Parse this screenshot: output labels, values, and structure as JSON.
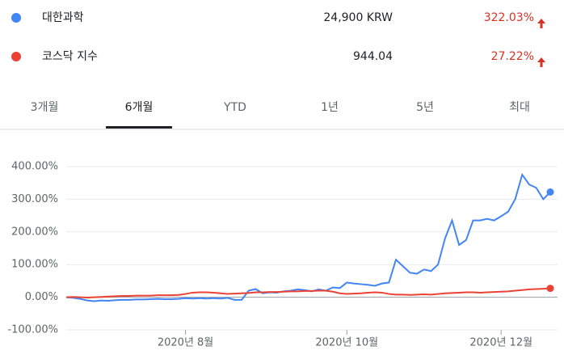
{
  "quotes": [
    {
      "name": "대한과학",
      "price": "24,900 KRW",
      "change": "322.03%",
      "color": "#4285f4"
    },
    {
      "name": "코스닥 지수",
      "price": "944.04",
      "change": "27.22%",
      "color": "#ea4335"
    }
  ],
  "tabs": [
    "3개월",
    "6개월",
    "YTD",
    "1년",
    "5년",
    "최대"
  ],
  "selected_tab": 1,
  "chart_data": {
    "type": "line",
    "categories": [
      null,
      null,
      null,
      null,
      null,
      null,
      null,
      null,
      null,
      null,
      null,
      null,
      null,
      null,
      null,
      null,
      null,
      "2020년 8월",
      null,
      null,
      null,
      null,
      null,
      null,
      null,
      null,
      null,
      null,
      null,
      null,
      null,
      null,
      null,
      null,
      null,
      null,
      null,
      null,
      null,
      null,
      "2020년 10월",
      null,
      null,
      null,
      null,
      null,
      null,
      null,
      null,
      null,
      null,
      null,
      null,
      null,
      null,
      null,
      null,
      null,
      null,
      null,
      null,
      null,
      "2020년 12월",
      null,
      null,
      null,
      null,
      null,
      null,
      null
    ],
    "series": [
      {
        "name": "대한과학",
        "color": "#4285f4",
        "values": [
          0,
          -2,
          -5,
          -10,
          -12,
          -10,
          -11,
          -9,
          -8,
          -8,
          -7,
          -7,
          -6,
          -5,
          -6,
          -6,
          -5,
          -3,
          -4,
          -3,
          -4,
          -3,
          -4,
          -2,
          -8,
          -8,
          20,
          25,
          12,
          15,
          14,
          18,
          20,
          24,
          22,
          18,
          24,
          20,
          30,
          28,
          45,
          42,
          40,
          38,
          35,
          42,
          45,
          115,
          95,
          75,
          72,
          85,
          80,
          100,
          180,
          235,
          160,
          175,
          235,
          235,
          240,
          235,
          248,
          262,
          300,
          375,
          345,
          335,
          300,
          322.03
        ]
      },
      {
        "name": "코스닥 지수",
        "color": "#ea4335",
        "values": [
          0,
          1,
          0,
          -1,
          0,
          1,
          2,
          3,
          4,
          4,
          5,
          5,
          5,
          6,
          6,
          6,
          7,
          10,
          14,
          15,
          15,
          14,
          12,
          10,
          11,
          12,
          13,
          15,
          15,
          16,
          16,
          17,
          18,
          18,
          19,
          19,
          20,
          20,
          17,
          12,
          10,
          11,
          12,
          14,
          15,
          14,
          10,
          8,
          8,
          7,
          8,
          9,
          8,
          10,
          12,
          13,
          14,
          15,
          15,
          14,
          15,
          16,
          17,
          18,
          20,
          22,
          24,
          25,
          26,
          27.22
        ]
      }
    ],
    "ylim": [
      -100,
      400
    ],
    "yticks": [
      {
        "value": -100,
        "label": "-100.00%"
      },
      {
        "value": 0,
        "label": "0.00%"
      },
      {
        "value": 100,
        "label": "100.00%"
      },
      {
        "value": 200,
        "label": "200.00%"
      },
      {
        "value": 300,
        "label": "300.00%"
      },
      {
        "value": 400,
        "label": "400.00%"
      }
    ],
    "grid": true
  }
}
